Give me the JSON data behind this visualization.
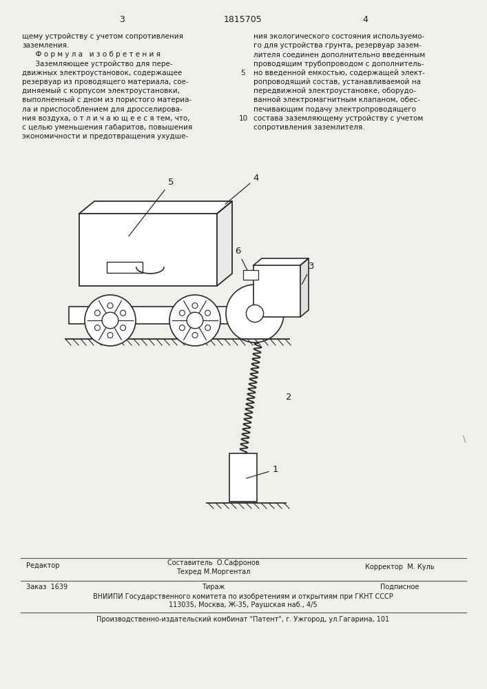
{
  "bg_color": "#f0f0eb",
  "header_num_left": "3",
  "header_num_center": "1815705",
  "header_num_right": "4",
  "col_left_lines": [
    "щему устройству с учетом сопротивления",
    "заземления.",
    "      Ф о р м у л а   и з о б р е т е н и я",
    "      Заземляющее устройство для пере-",
    "движных электроустановок, содержащее",
    "резервуар из проводящего материала, сое-",
    "диняемый с корпусом электроустановки,",
    "выполненный с дном из пористого материа-",
    "ла и приспособлением для дросселирова-",
    "ния воздуха, о т л и ч а ю щ е е с я тем, что,",
    "с целью уменьшения габаритов, повышения",
    "экономичности и предотвращения ухудше-"
  ],
  "col_right_lines": [
    "ния экологического состояния используемо-",
    "го для устройства грунта, резервуар зазем-",
    "лителя соединен дополнительно введенным",
    "проводящим трубопроводом с дополнитель-",
    "но введенной емкостью, содержащей элект-",
    "ропроводящий состав, устанавливаемой на",
    "передвижной электроустановке, оборудо-",
    "ванной электромагнитным клапаном, обес-",
    "печивающим подачу электропроводящего",
    "состава заземляющему устройству с учетом",
    "сопротивления заземлителя."
  ],
  "line_number_5_row": 4,
  "line_number_10_row": 9,
  "footer_editor": "Редактор",
  "footer_composer_label": "Составитель  О.Сафронов",
  "footer_techred_label": "Техред М.Моргентал",
  "footer_corrector": "Корректор  М. Куль",
  "footer_order": "Заказ  1639",
  "footer_tirazh": "Тираж",
  "footer_podpisnoe": "Подписное",
  "footer_vniipи": "ВНИИПИ Государственного комитета по изобретениям и открытиям при ГКНТ СССР",
  "footer_address": "113035, Москва, Ж-35, Раушская наб., 4/5",
  "footer_patent": "Производственно-издательский комбинат \"Патент\", г. Ужгород, ул.Гагарина, 101",
  "text_color": "#1a1a1a",
  "draw_color": "#2a2a2a"
}
